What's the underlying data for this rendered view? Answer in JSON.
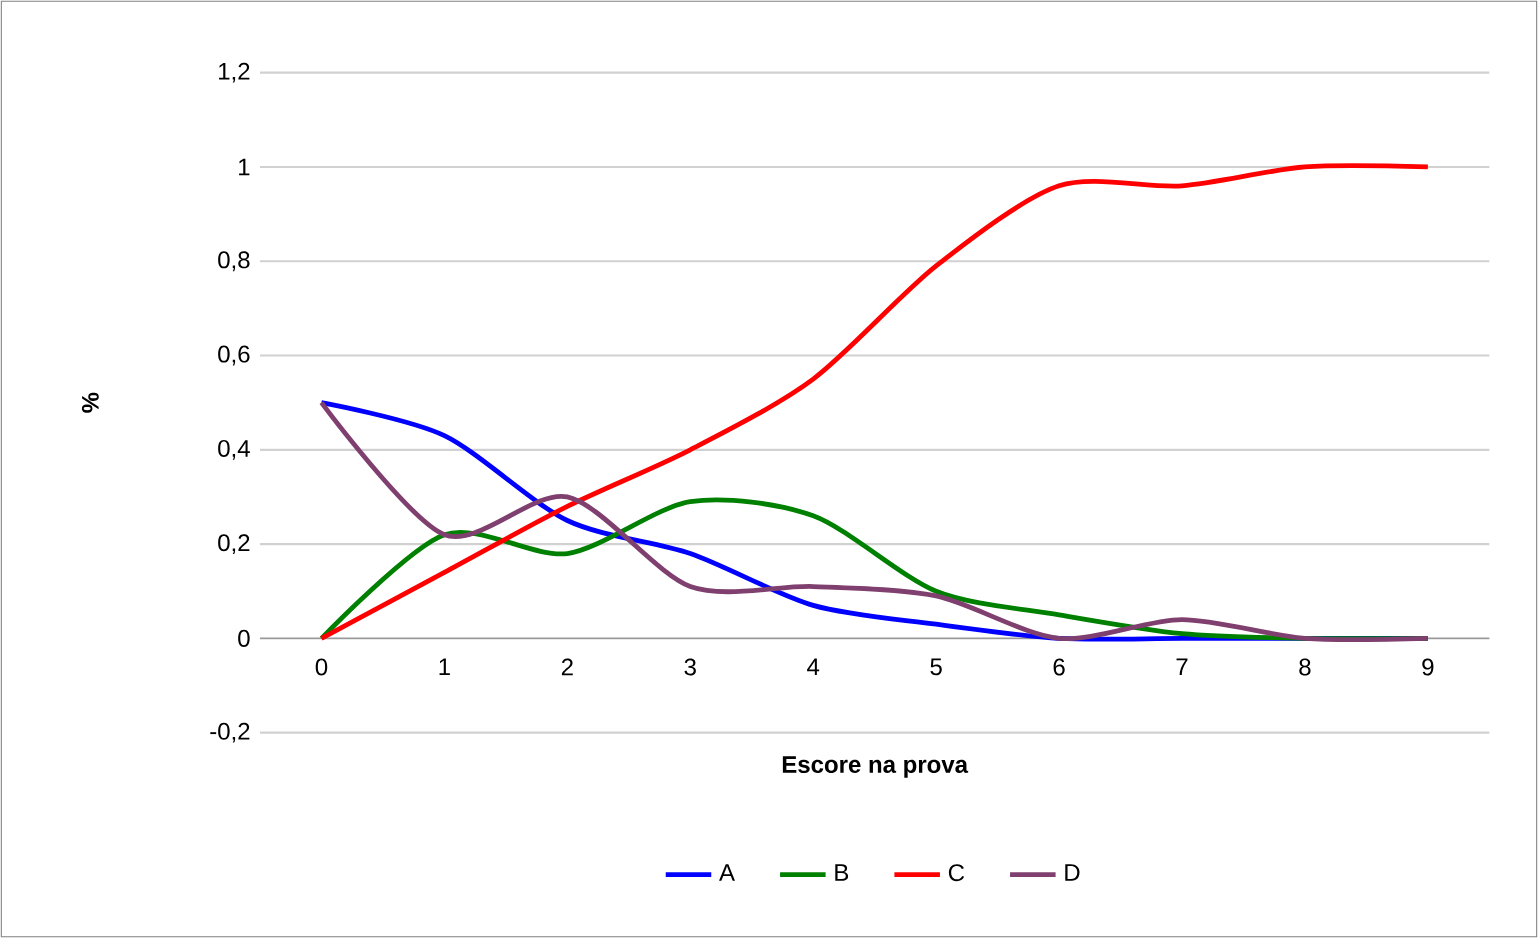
{
  "chart_data": {
    "type": "line",
    "xlabel": "Escore na prova",
    "ylabel": "%",
    "categories": [
      "0",
      "1",
      "2",
      "3",
      "4",
      "5",
      "6",
      "7",
      "8",
      "9"
    ],
    "series": [
      {
        "name": "A",
        "color": "#0000ff",
        "values": [
          0.5,
          0.43,
          0.25,
          0.18,
          0.07,
          0.03,
          0,
          0,
          0,
          0
        ]
      },
      {
        "name": "B",
        "color": "#008000",
        "values": [
          0,
          0.22,
          0.18,
          0.29,
          0.26,
          0.1,
          0.05,
          0.01,
          0,
          0
        ]
      },
      {
        "name": "C",
        "color": "#ff0000",
        "values": [
          0,
          0.14,
          0.28,
          0.4,
          0.55,
          0.79,
          0.96,
          0.96,
          1.0,
          1.0
        ]
      },
      {
        "name": "D",
        "color": "#7f3f6f",
        "values": [
          0.5,
          0.22,
          0.3,
          0.11,
          0.11,
          0.09,
          0,
          0.04,
          0,
          0
        ]
      }
    ],
    "ylim": [
      -0.2,
      1.2
    ],
    "yticks": [
      {
        "value": -0.2,
        "label": "-0,2"
      },
      0,
      {
        "value": 0.2,
        "label": "0,2"
      },
      {
        "value": 0.4,
        "label": "0,4"
      },
      {
        "value": 0.6,
        "label": "0,6"
      },
      {
        "value": 0.8,
        "label": "0,8"
      },
      1,
      {
        "value": 1.2,
        "label": "1,2"
      }
    ],
    "grid": "y",
    "legend": "bottom",
    "marker": "none",
    "line_style": "solid"
  }
}
